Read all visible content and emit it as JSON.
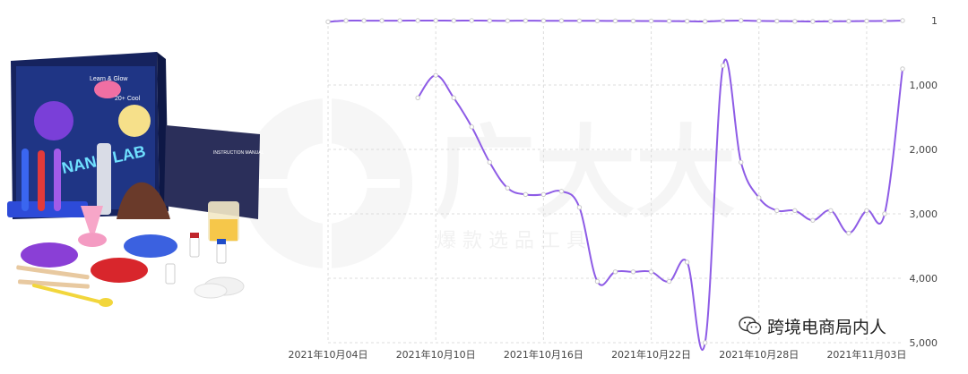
{
  "watermark": {
    "title": "广大大",
    "subtitle": "爆 款 选 品 工 具"
  },
  "caption": {
    "text": "跨境电商局内人"
  },
  "product_image": {
    "box_text_1": "NANO LAB",
    "box_text_2": "Learn & Glow",
    "box_text_3": "20+ Cool",
    "manual_text": "INSTRUCTION MANUAL"
  },
  "colors": {
    "line": "#8E5CE6",
    "grid": "#DCDCDC",
    "axis_text": "#444444"
  },
  "chart_data": {
    "type": "line",
    "x_tick_labels": [
      "2021年10月04日",
      "2021年10月10日",
      "2021年10月16日",
      "2021年10月22日",
      "2021年10月28日",
      "2021年11月03日"
    ],
    "y_tick_labels": [
      "1",
      "1,000",
      "2,000",
      "3,000",
      "4,000",
      "5,000"
    ],
    "y_ticks": [
      1,
      1000,
      2000,
      3000,
      4000,
      5000
    ],
    "ylim": [
      1,
      5000
    ],
    "y_inverted": true,
    "grid": true,
    "x": [
      "2021-10-04",
      "2021-10-05",
      "2021-10-06",
      "2021-10-07",
      "2021-10-08",
      "2021-10-09",
      "2021-10-10",
      "2021-10-11",
      "2021-10-12",
      "2021-10-13",
      "2021-10-14",
      "2021-10-15",
      "2021-10-16",
      "2021-10-17",
      "2021-10-18",
      "2021-10-19",
      "2021-10-20",
      "2021-10-21",
      "2021-10-22",
      "2021-10-23",
      "2021-10-24",
      "2021-10-25",
      "2021-10-26",
      "2021-10-27",
      "2021-10-28",
      "2021-10-29",
      "2021-10-30",
      "2021-10-31",
      "2021-11-01",
      "2021-11-02",
      "2021-11-03",
      "2021-11-04",
      "2021-11-05"
    ],
    "series": [
      {
        "values": [
          20,
          2,
          2,
          2,
          2,
          1,
          1,
          2,
          1,
          3,
          4,
          3,
          4,
          4,
          5,
          5,
          6,
          7,
          8,
          9,
          11,
          14,
          5,
          1,
          6,
          9,
          12,
          15,
          13,
          11,
          8,
          7,
          1
        ]
      },
      {
        "values": [
          null,
          null,
          null,
          null,
          null,
          1200,
          850,
          1200,
          1650,
          2200,
          2600,
          2700,
          2700,
          2650,
          2900,
          4050,
          3900,
          3900,
          3900,
          4050,
          3750,
          5000,
          700,
          2200,
          2750,
          2950,
          2950,
          3100,
          2950,
          3300,
          2950,
          3000,
          750
        ]
      }
    ]
  }
}
